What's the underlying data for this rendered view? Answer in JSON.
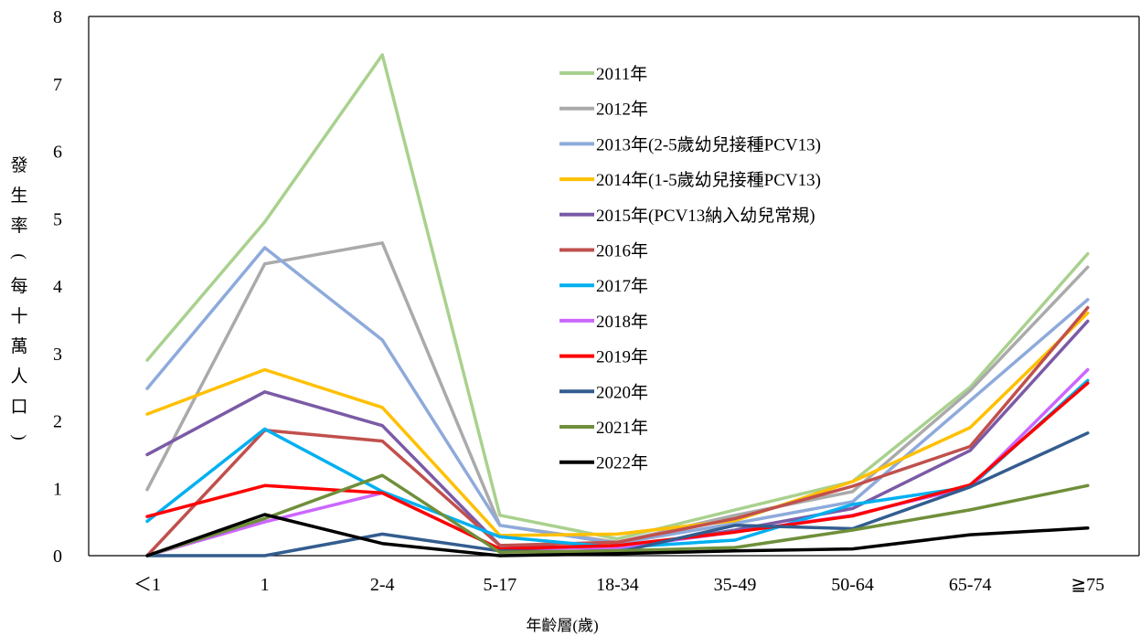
{
  "chart_data": {
    "type": "line",
    "title": "",
    "xlabel": "年齡層(歲)",
    "ylabel": [
      "發",
      "生",
      "率",
      "(",
      "每",
      "十",
      "萬",
      "人",
      "口",
      ")"
    ],
    "categories": [
      "＜1",
      "1",
      "2-4",
      "5-17",
      "18-34",
      "35-49",
      "50-64",
      "65-74",
      "≧75"
    ],
    "ylim": [
      0,
      8
    ],
    "yticks": [
      "0",
      "1",
      "2",
      "3",
      "4",
      "5",
      "6",
      "7",
      "8"
    ],
    "grid": false,
    "legend_position": "top-center",
    "series": [
      {
        "name": "2011年",
        "color": "#a9d18e",
        "values": [
          2.9,
          4.95,
          7.43,
          0.6,
          0.25,
          0.68,
          1.1,
          2.5,
          4.48
        ]
      },
      {
        "name": "2012年",
        "color": "#aaaaaa",
        "values": [
          0.98,
          4.33,
          4.64,
          0.45,
          0.2,
          0.6,
          0.95,
          2.45,
          4.28
        ]
      },
      {
        "name": "2013年(2-5歲幼兒接種PCV13)",
        "color": "#8eaadb",
        "values": [
          2.48,
          4.57,
          3.2,
          0.45,
          0.18,
          0.48,
          0.8,
          2.3,
          3.8
        ]
      },
      {
        "name": "2014年(1-5歲幼兒接種PCV13)",
        "color": "#ffc000",
        "values": [
          2.1,
          2.76,
          2.2,
          0.3,
          0.32,
          0.52,
          1.1,
          1.9,
          3.6
        ]
      },
      {
        "name": "2015年(PCV13納入幼兒常規)",
        "color": "#7b5aa6",
        "values": [
          1.5,
          2.43,
          1.93,
          0.15,
          0.1,
          0.38,
          0.7,
          1.56,
          3.48
        ]
      },
      {
        "name": "2016年",
        "color": "#c0504d",
        "values": [
          0,
          1.86,
          1.7,
          0.15,
          0.2,
          0.55,
          1.03,
          1.62,
          3.68
        ]
      },
      {
        "name": "2017年",
        "color": "#00b0f0",
        "values": [
          0.51,
          1.88,
          0.95,
          0.28,
          0.12,
          0.23,
          0.76,
          1.02,
          2.6
        ]
      },
      {
        "name": "2018年",
        "color": "#cc66ff",
        "values": [
          0,
          0.5,
          0.93,
          0.1,
          0.12,
          0.35,
          0.6,
          1.02,
          2.76
        ]
      },
      {
        "name": "2019年",
        "color": "#ff0000",
        "values": [
          0.58,
          1.04,
          0.93,
          0.1,
          0.15,
          0.35,
          0.59,
          1.05,
          2.56
        ]
      },
      {
        "name": "2020年",
        "color": "#335d8f",
        "values": [
          0,
          0,
          0.32,
          0.07,
          0.05,
          0.45,
          0.4,
          1.02,
          1.82
        ]
      },
      {
        "name": "2021年",
        "color": "#6f8f3a",
        "values": [
          0,
          0.55,
          1.19,
          0.05,
          0.07,
          0.12,
          0.38,
          0.68,
          1.04
        ]
      },
      {
        "name": "2022年",
        "color": "#000000",
        "values": [
          0,
          0.61,
          0.18,
          0,
          0.03,
          0.07,
          0.1,
          0.31,
          0.41
        ]
      }
    ]
  }
}
